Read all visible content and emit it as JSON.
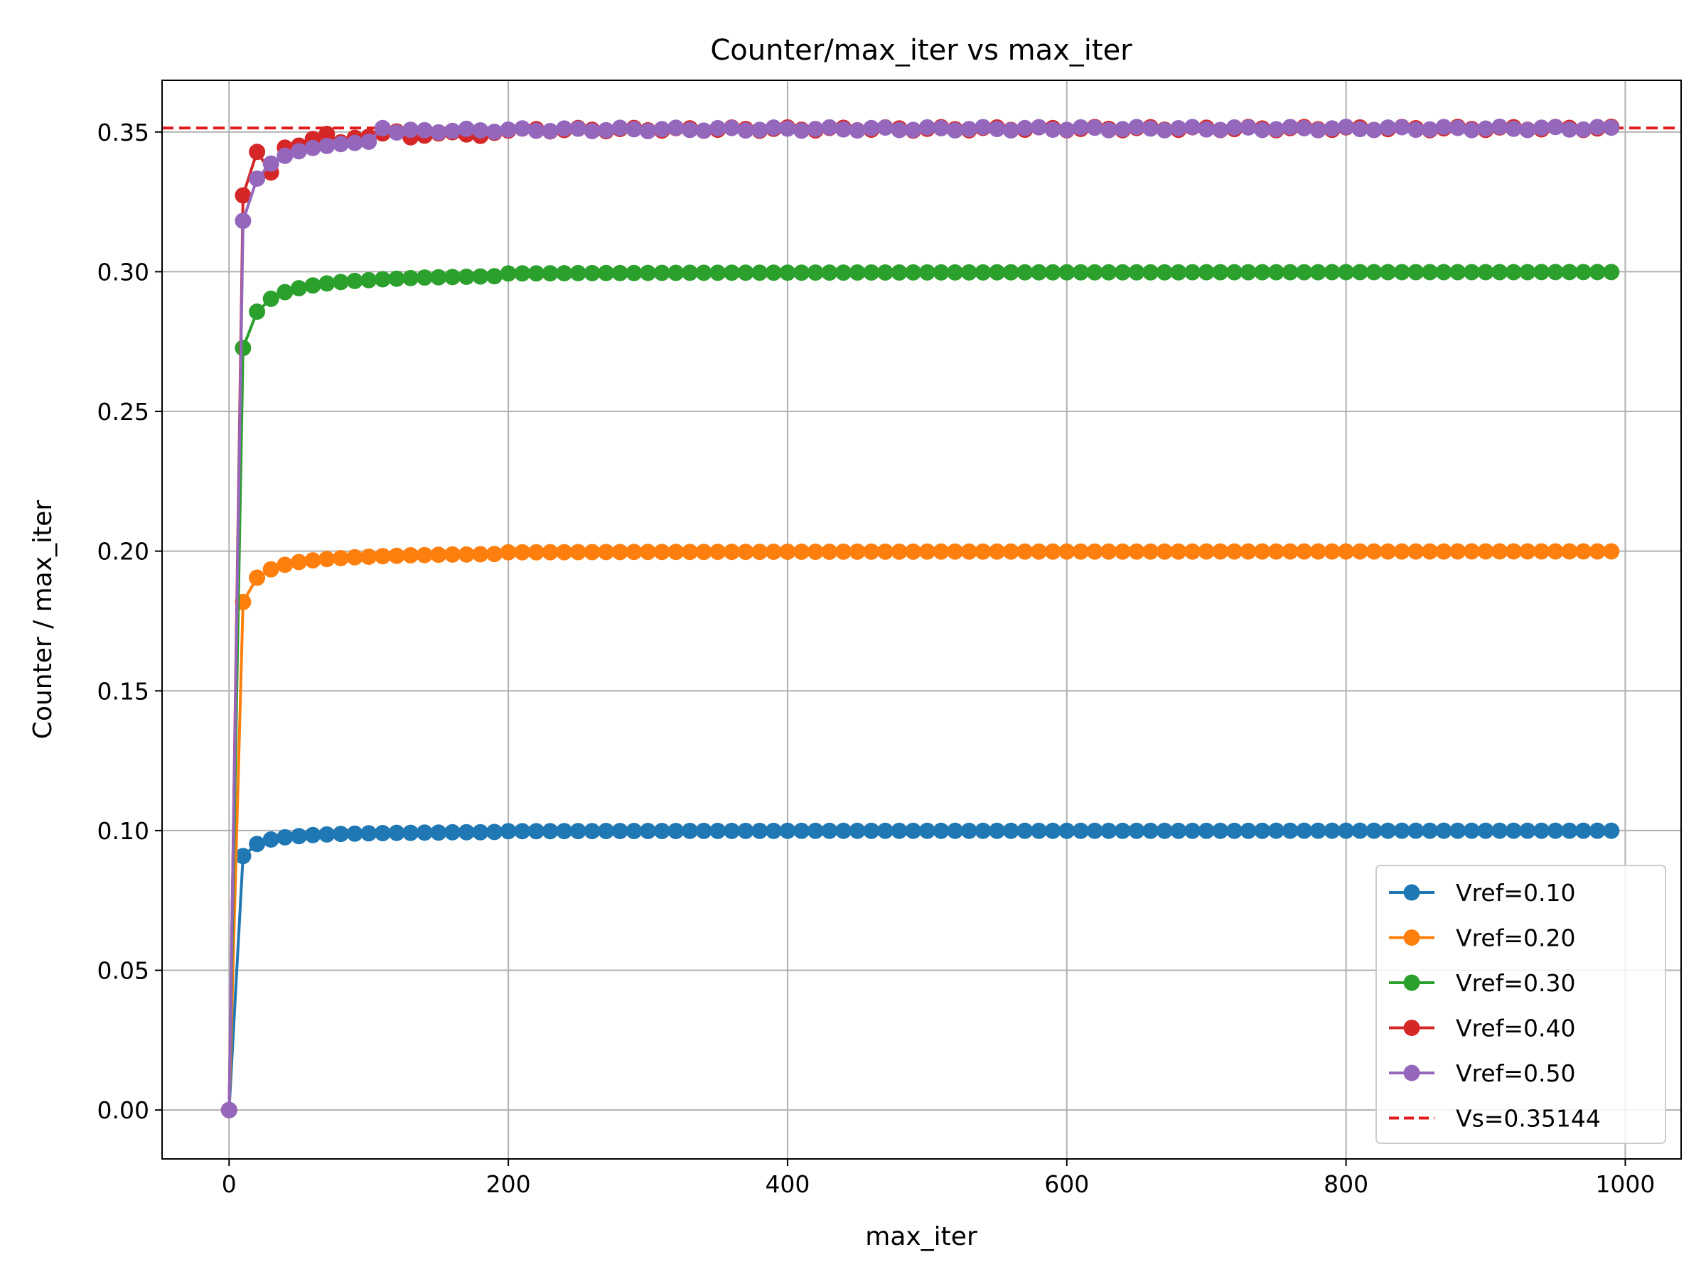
{
  "chart_data": {
    "type": "line",
    "title": "Counter/max_iter vs max_iter",
    "xlabel": "max_iter",
    "ylabel": "Counter / max_iter",
    "xlim": [
      -48,
      1040
    ],
    "ylim": [
      -0.0175,
      0.3685
    ],
    "x_ticks": [
      {
        "value": 0,
        "label": "0"
      },
      {
        "value": 200,
        "label": "200"
      },
      {
        "value": 400,
        "label": "400"
      },
      {
        "value": 600,
        "label": "600"
      },
      {
        "value": 800,
        "label": "800"
      },
      {
        "value": 1000,
        "label": "1000"
      }
    ],
    "y_ticks": [
      {
        "value": 0.0,
        "label": "0.00"
      },
      {
        "value": 0.05,
        "label": "0.05"
      },
      {
        "value": 0.1,
        "label": "0.10"
      },
      {
        "value": 0.15,
        "label": "0.15"
      },
      {
        "value": 0.2,
        "label": "0.20"
      },
      {
        "value": 0.25,
        "label": "0.25"
      },
      {
        "value": 0.3,
        "label": "0.30"
      },
      {
        "value": 0.35,
        "label": "0.35"
      }
    ],
    "grid": true,
    "legend_position": "lower-right",
    "x_start": 0,
    "x_step": 10,
    "x_end": 990,
    "series": [
      {
        "name": "Vref=0.10",
        "color": "#1f77b4",
        "target": 0.1,
        "initial": [
          0.0,
          0.0909,
          0.0952,
          0.0968,
          0.0976,
          0.098,
          0.0984,
          0.0986,
          0.0988,
          0.0989,
          0.099,
          0.0991,
          0.0992,
          0.0992,
          0.0993,
          0.0993,
          0.0994,
          0.0994,
          0.0994,
          0.0995
        ]
      },
      {
        "name": "Vref=0.20",
        "color": "#ff7f0e",
        "target": 0.2,
        "initial": [
          0.0,
          0.1818,
          0.1905,
          0.1935,
          0.1951,
          0.1961,
          0.1967,
          0.1972,
          0.1975,
          0.1978,
          0.198,
          0.1982,
          0.1983,
          0.1985,
          0.1986,
          0.1987,
          0.1988,
          0.1988,
          0.1989,
          0.199
        ]
      },
      {
        "name": "Vref=0.30",
        "color": "#2ca02c",
        "target": 0.3,
        "initial": [
          0.0,
          0.2727,
          0.2857,
          0.2903,
          0.2927,
          0.2941,
          0.2951,
          0.2958,
          0.2963,
          0.2967,
          0.297,
          0.2973,
          0.2975,
          0.2977,
          0.2979,
          0.298,
          0.2981,
          0.2982,
          0.2983,
          0.2984
        ]
      },
      {
        "name": "Vref=0.40",
        "color": "#d62728",
        "target": 0.35144,
        "initial": [
          0.0,
          0.3273,
          0.3429,
          0.3355,
          0.3444,
          0.3451,
          0.3475,
          0.3493,
          0.3463,
          0.3479,
          0.3483,
          0.3495,
          0.3502,
          0.3481,
          0.3487,
          0.3495,
          0.3499,
          0.3491,
          0.3486,
          0.3497,
          0.3505
        ]
      },
      {
        "name": "Vref=0.50",
        "color": "#9467bd",
        "target": 0.35144,
        "initial": [
          0.0,
          0.3182,
          0.3333,
          0.3387,
          0.3415,
          0.3431,
          0.3443,
          0.345,
          0.3457,
          0.3461,
          0.3465,
          0.3514
        ]
      }
    ],
    "reference_line": {
      "name": "Vs=0.35144",
      "value": 0.35144,
      "color": "#e31a1c"
    }
  }
}
